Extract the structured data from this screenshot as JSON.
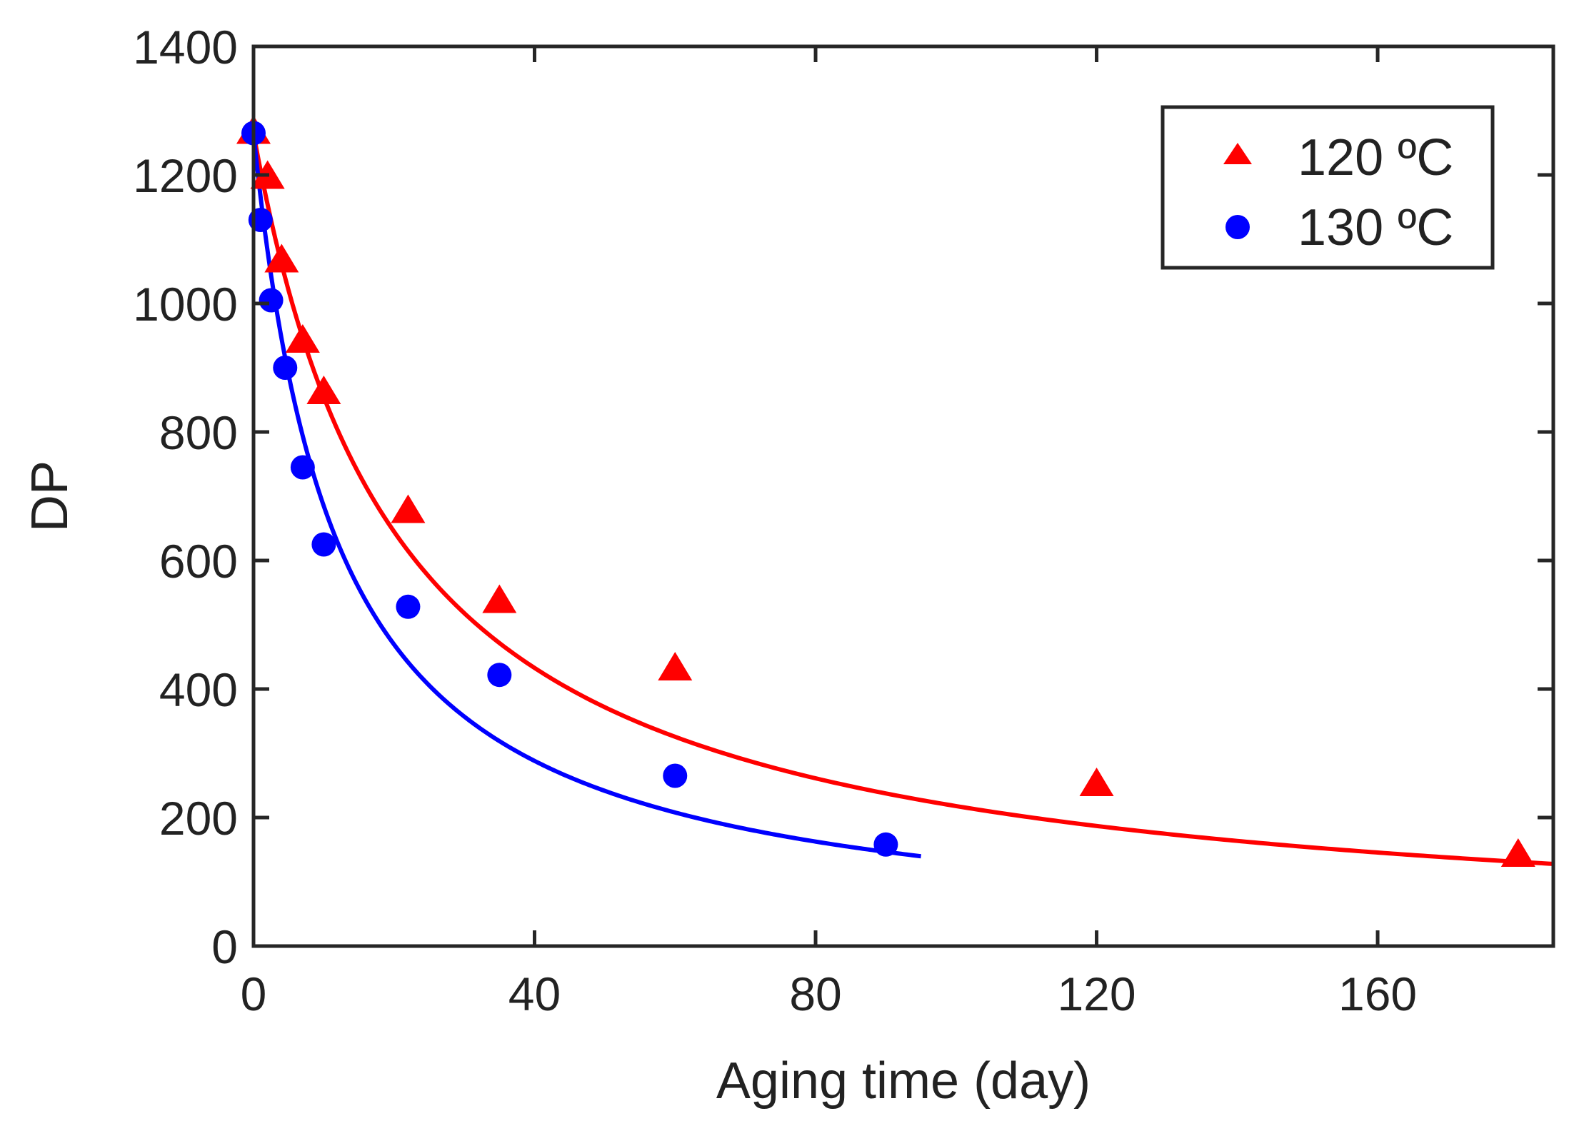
{
  "chart_data": {
    "type": "scatter",
    "title": "",
    "xlabel": "Aging time (day)",
    "ylabel": "DP",
    "xlim": [
      0,
      185
    ],
    "ylim": [
      0,
      1400
    ],
    "xticks": [
      0,
      40,
      80,
      120,
      160
    ],
    "yticks": [
      0,
      200,
      400,
      600,
      800,
      1000,
      1200,
      1400
    ],
    "grid": false,
    "legend_position": "top-right",
    "series": [
      {
        "name": "120 ºC",
        "color": "#ff0000",
        "marker": "triangle",
        "points": [
          {
            "x": 0,
            "y": 1265
          },
          {
            "x": 2,
            "y": 1195
          },
          {
            "x": 4,
            "y": 1065
          },
          {
            "x": 7,
            "y": 940
          },
          {
            "x": 10,
            "y": 860
          },
          {
            "x": 22,
            "y": 675
          },
          {
            "x": 35,
            "y": 535
          },
          {
            "x": 60,
            "y": 430
          },
          {
            "x": 120,
            "y": 250
          },
          {
            "x": 180,
            "y": 140
          }
        ],
        "fit": {
          "model": "1/DP = 1/DP0 + k*t",
          "DP0": 1265,
          "k": 3.8e-05,
          "t_max": 185
        }
      },
      {
        "name": "130 ºC",
        "color": "#0000ff",
        "marker": "circle",
        "points": [
          {
            "x": 0,
            "y": 1265
          },
          {
            "x": 1,
            "y": 1130
          },
          {
            "x": 2.5,
            "y": 1005
          },
          {
            "x": 4.5,
            "y": 900
          },
          {
            "x": 7,
            "y": 745
          },
          {
            "x": 10,
            "y": 625
          },
          {
            "x": 22,
            "y": 528
          },
          {
            "x": 35,
            "y": 422
          },
          {
            "x": 60,
            "y": 265
          },
          {
            "x": 90,
            "y": 158
          }
        ],
        "fit": {
          "model": "1/DP = 1/DP0 + k*t",
          "DP0": 1265,
          "k": 6.7e-05,
          "t_max": 95
        }
      }
    ]
  }
}
